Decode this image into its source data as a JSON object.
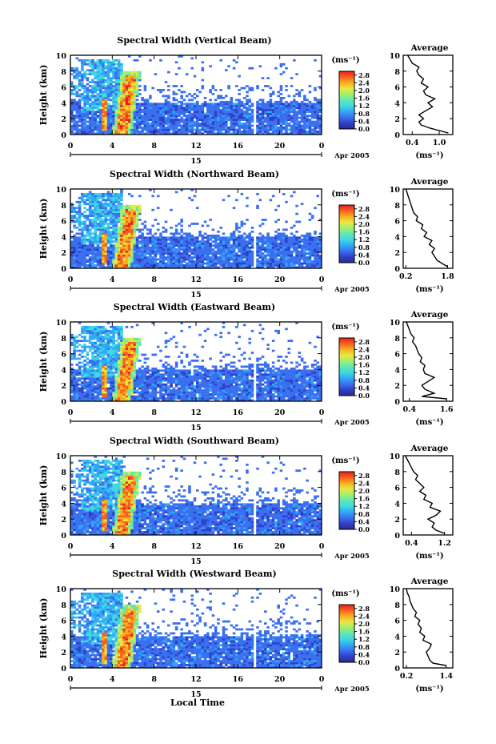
{
  "figure": {
    "x_axis_label": "Local Time",
    "date_right": "Apr 2005",
    "date_day": "15",
    "y_axis_label": "Height (km)",
    "unit_label": "(ms⁻¹)",
    "average_title": "Average",
    "average_xlabel": "(ms⁻¹)",
    "colors": {
      "scale": [
        "#2a2a8a",
        "#3040c8",
        "#3a70f0",
        "#30a8f8",
        "#40d8e0",
        "#60e8b0",
        "#a0f070",
        "#e8e840",
        "#f8b020",
        "#f86020",
        "#e82020"
      ]
    }
  },
  "chart_data": [
    {
      "type": "heatmap",
      "title": "Spectral Width (Vertical Beam)",
      "xlabel": "",
      "ylabel": "Height (km)",
      "xlim": [
        0,
        24
      ],
      "ylim": [
        0,
        10
      ],
      "xticks": [
        "0",
        "4",
        "8",
        "12",
        "16",
        "20",
        "0"
      ],
      "yticks": [
        "0",
        "2",
        "4",
        "6",
        "8",
        "10"
      ],
      "colorbar": {
        "unit": "(ms⁻¹)",
        "ticks": [
          "0.0",
          "0.4",
          "0.8",
          "1.2",
          "1.6",
          "2.0",
          "2.4",
          "2.8"
        ],
        "range": [
          0,
          3.0
        ]
      },
      "average": {
        "title": "Average",
        "xlabel": "(ms⁻¹)",
        "xticks": [
          "0.4",
          "1.0"
        ],
        "xlim": [
          0.2,
          1.3
        ],
        "profile": [
          [
            1.2,
            0.2
          ],
          [
            1.0,
            0.5
          ],
          [
            0.8,
            0.8
          ],
          [
            0.6,
            1.2
          ],
          [
            0.55,
            1.6
          ],
          [
            0.65,
            2.0
          ],
          [
            0.55,
            2.5
          ],
          [
            0.7,
            3.0
          ],
          [
            0.85,
            3.5
          ],
          [
            0.75,
            4.0
          ],
          [
            0.9,
            4.5
          ],
          [
            0.7,
            5.0
          ],
          [
            0.65,
            5.5
          ],
          [
            0.75,
            6.0
          ],
          [
            0.6,
            6.5
          ],
          [
            0.65,
            7.0
          ],
          [
            0.55,
            7.5
          ],
          [
            0.5,
            8.0
          ],
          [
            0.55,
            8.5
          ],
          [
            0.4,
            9.0
          ],
          [
            0.35,
            9.5
          ],
          [
            0.3,
            10.0
          ]
        ]
      }
    },
    {
      "type": "heatmap",
      "title": "Spectral Width (Northward Beam)",
      "xlabel": "",
      "ylabel": "Height (km)",
      "xlim": [
        0,
        24
      ],
      "ylim": [
        0,
        10
      ],
      "xticks": [
        "0",
        "4",
        "8",
        "12",
        "16",
        "20",
        "0"
      ],
      "yticks": [
        "0",
        "2",
        "4",
        "6",
        "8",
        "10"
      ],
      "colorbar": {
        "unit": "(ms⁻¹)",
        "ticks": [
          "0.0",
          "0.4",
          "0.8",
          "1.2",
          "1.6",
          "2.0",
          "2.4",
          "2.8"
        ],
        "range": [
          0,
          3.0
        ]
      },
      "average": {
        "title": "Average",
        "xlabel": "(ms⁻¹)",
        "xticks": [
          "0.2",
          "1.8"
        ],
        "xlim": [
          0.1,
          2.0
        ],
        "profile": [
          [
            1.8,
            0.2
          ],
          [
            1.6,
            0.6
          ],
          [
            1.4,
            1.0
          ],
          [
            1.3,
            1.5
          ],
          [
            1.2,
            2.0
          ],
          [
            1.3,
            2.5
          ],
          [
            1.1,
            3.0
          ],
          [
            1.2,
            3.5
          ],
          [
            0.9,
            4.0
          ],
          [
            1.0,
            4.5
          ],
          [
            0.8,
            5.0
          ],
          [
            0.85,
            5.5
          ],
          [
            0.6,
            6.0
          ],
          [
            0.65,
            6.5
          ],
          [
            0.5,
            7.0
          ],
          [
            0.45,
            7.5
          ],
          [
            0.4,
            8.0
          ],
          [
            0.35,
            8.5
          ],
          [
            0.3,
            9.0
          ],
          [
            0.25,
            9.5
          ],
          [
            0.2,
            10.0
          ]
        ]
      }
    },
    {
      "type": "heatmap",
      "title": "Spectral Width (Eastward Beam)",
      "xlabel": "",
      "ylabel": "Height (km)",
      "xlim": [
        0,
        24
      ],
      "ylim": [
        0,
        10
      ],
      "xticks": [
        "0",
        "4",
        "8",
        "12",
        "16",
        "20",
        "0"
      ],
      "yticks": [
        "0",
        "2",
        "4",
        "6",
        "8",
        "10"
      ],
      "colorbar": {
        "unit": "(ms⁻¹)",
        "ticks": [
          "0.0",
          "0.4",
          "0.8",
          "1.2",
          "1.6",
          "2.0",
          "2.4",
          "2.8"
        ],
        "range": [
          0,
          3.0
        ]
      },
      "average": {
        "title": "Average",
        "xlabel": "(ms⁻¹)",
        "xticks": [
          "0.4",
          "1.6"
        ],
        "xlim": [
          0.2,
          1.8
        ],
        "profile": [
          [
            1.6,
            0.3
          ],
          [
            0.8,
            0.6
          ],
          [
            1.2,
            1.0
          ],
          [
            0.9,
            1.5
          ],
          [
            0.8,
            2.0
          ],
          [
            1.0,
            2.5
          ],
          [
            1.2,
            3.0
          ],
          [
            0.9,
            3.5
          ],
          [
            0.85,
            4.0
          ],
          [
            0.9,
            4.5
          ],
          [
            0.75,
            5.0
          ],
          [
            0.8,
            5.5
          ],
          [
            0.7,
            6.0
          ],
          [
            0.65,
            6.5
          ],
          [
            0.6,
            7.0
          ],
          [
            0.5,
            7.5
          ],
          [
            0.55,
            8.0
          ],
          [
            0.45,
            8.5
          ],
          [
            0.4,
            9.0
          ],
          [
            0.35,
            9.5
          ],
          [
            0.3,
            10.0
          ]
        ]
      }
    },
    {
      "type": "heatmap",
      "title": "Spectral Width (Southward Beam)",
      "xlabel": "",
      "ylabel": "Height (km)",
      "xlim": [
        0,
        24
      ],
      "ylim": [
        0,
        10
      ],
      "xticks": [
        "0",
        "4",
        "8",
        "12",
        "16",
        "20",
        "0"
      ],
      "yticks": [
        "0",
        "2",
        "4",
        "6",
        "8",
        "10"
      ],
      "colorbar": {
        "unit": "(ms⁻¹)",
        "ticks": [
          "0.0",
          "0.4",
          "0.8",
          "1.2",
          "1.6",
          "2.0",
          "2.4",
          "2.8"
        ],
        "range": [
          0,
          3.0
        ]
      },
      "average": {
        "title": "Average",
        "xlabel": "(ms⁻¹)",
        "xticks": [
          "0.4",
          "1.2"
        ],
        "xlim": [
          0.2,
          1.4
        ],
        "profile": [
          [
            1.2,
            0.2
          ],
          [
            1.0,
            0.6
          ],
          [
            0.9,
            1.0
          ],
          [
            0.95,
            1.5
          ],
          [
            0.8,
            2.0
          ],
          [
            1.0,
            2.5
          ],
          [
            1.1,
            3.0
          ],
          [
            0.85,
            3.5
          ],
          [
            0.9,
            4.0
          ],
          [
            0.7,
            4.5
          ],
          [
            0.75,
            5.0
          ],
          [
            0.6,
            5.5
          ],
          [
            0.7,
            6.0
          ],
          [
            0.6,
            6.5
          ],
          [
            0.5,
            7.0
          ],
          [
            0.55,
            7.5
          ],
          [
            0.45,
            8.0
          ],
          [
            0.4,
            8.5
          ],
          [
            0.35,
            9.0
          ],
          [
            0.3,
            9.5
          ],
          [
            0.25,
            10.0
          ]
        ]
      }
    },
    {
      "type": "heatmap",
      "title": "Spectral Width (Westward Beam)",
      "xlabel": "Local Time",
      "ylabel": "Height (km)",
      "xlim": [
        0,
        24
      ],
      "ylim": [
        0,
        10
      ],
      "xticks": [
        "0",
        "4",
        "8",
        "12",
        "16",
        "20",
        "0"
      ],
      "yticks": [
        "0",
        "2",
        "4",
        "6",
        "8",
        "10"
      ],
      "colorbar": {
        "unit": "(ms⁻¹)",
        "ticks": [
          "0.0",
          "0.4",
          "0.8",
          "1.2",
          "1.6",
          "2.0",
          "2.4",
          "2.8"
        ],
        "range": [
          0,
          3.0
        ]
      },
      "average": {
        "title": "Average",
        "xlabel": "(ms⁻¹)",
        "xticks": [
          "0.2",
          "1.4"
        ],
        "xlim": [
          0.1,
          1.6
        ],
        "profile": [
          [
            1.4,
            0.3
          ],
          [
            1.0,
            0.6
          ],
          [
            0.9,
            1.0
          ],
          [
            0.85,
            1.5
          ],
          [
            0.8,
            2.0
          ],
          [
            0.9,
            2.5
          ],
          [
            0.95,
            3.0
          ],
          [
            0.7,
            3.5
          ],
          [
            0.75,
            4.0
          ],
          [
            0.6,
            4.5
          ],
          [
            0.65,
            5.0
          ],
          [
            0.55,
            5.5
          ],
          [
            0.6,
            6.0
          ],
          [
            0.45,
            6.5
          ],
          [
            0.5,
            7.0
          ],
          [
            0.4,
            7.5
          ],
          [
            0.35,
            8.0
          ],
          [
            0.3,
            8.5
          ],
          [
            0.28,
            9.0
          ],
          [
            0.22,
            9.5
          ],
          [
            0.2,
            10.0
          ]
        ]
      }
    }
  ]
}
